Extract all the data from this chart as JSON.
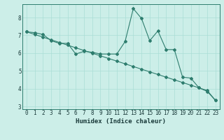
{
  "title": "",
  "xlabel": "Humidex (Indice chaleur)",
  "ylabel": "",
  "background_color": "#cceee8",
  "line_color": "#2e7d6e",
  "x_data": [
    0,
    1,
    2,
    3,
    4,
    5,
    6,
    7,
    8,
    9,
    10,
    11,
    12,
    13,
    14,
    15,
    16,
    17,
    18,
    19,
    20,
    21,
    22,
    23
  ],
  "y_line1": [
    7.2,
    7.15,
    7.05,
    6.7,
    6.55,
    6.55,
    5.95,
    6.1,
    6.05,
    5.95,
    5.95,
    5.95,
    6.65,
    8.5,
    7.95,
    6.7,
    7.25,
    6.2,
    6.2,
    4.65,
    4.6,
    4.05,
    3.85,
    3.35
  ],
  "y_line2": [
    7.2,
    7.05,
    6.9,
    6.75,
    6.6,
    6.45,
    6.3,
    6.15,
    6.0,
    5.85,
    5.7,
    5.55,
    5.4,
    5.25,
    5.1,
    4.95,
    4.8,
    4.65,
    4.5,
    4.35,
    4.2,
    4.05,
    3.9,
    3.35
  ],
  "xlim": [
    -0.5,
    23.5
  ],
  "ylim": [
    2.85,
    8.75
  ],
  "yticks": [
    3,
    4,
    5,
    6,
    7,
    8
  ],
  "xticks": [
    0,
    1,
    2,
    3,
    4,
    5,
    6,
    7,
    8,
    9,
    10,
    11,
    12,
    13,
    14,
    15,
    16,
    17,
    18,
    19,
    20,
    21,
    22,
    23
  ],
  "grid_color": "#aaddd6",
  "marker": "D",
  "markersize": 2.0,
  "linewidth": 0.8,
  "tick_fontsize": 5.5,
  "label_fontsize": 6.5,
  "spine_color": "#2e7d6e"
}
